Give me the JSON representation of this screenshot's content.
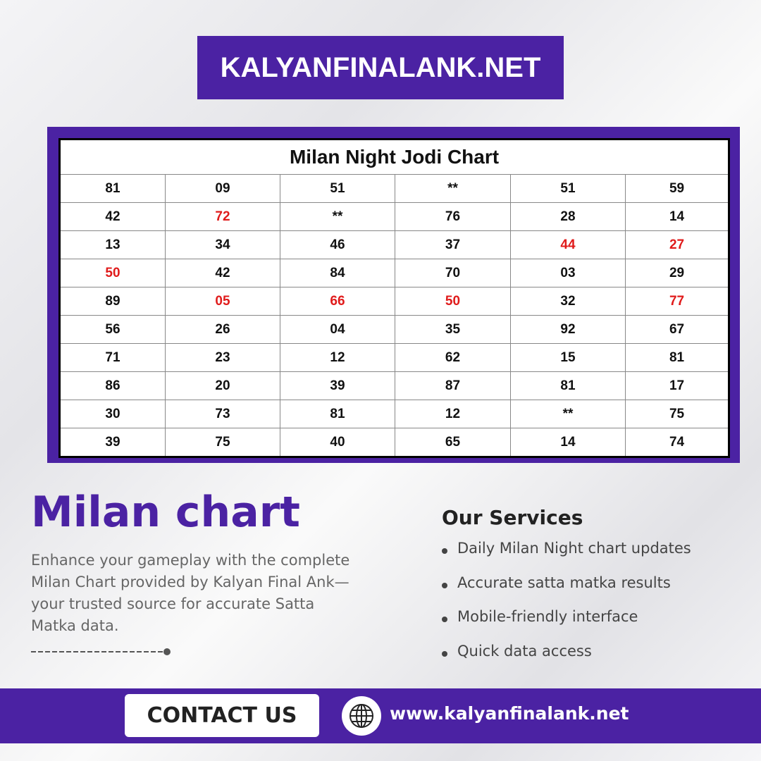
{
  "header": {
    "title": "KALYANFINALANK.NET"
  },
  "table": {
    "title": "Milan Night Jodi Chart",
    "rows": [
      [
        "81",
        "09",
        "51",
        "**",
        "51",
        "59"
      ],
      [
        "42",
        {
          "text": "72",
          "color": "#e01b1b"
        },
        "**",
        "76",
        "28",
        "14"
      ],
      [
        "13",
        "34",
        "46",
        "37",
        {
          "text": "44",
          "color": "#e01b1b"
        },
        {
          "text": "27",
          "color": "#e01b1b"
        }
      ],
      [
        {
          "text": "50",
          "color": "#e01b1b"
        },
        "42",
        "84",
        "70",
        "03",
        "29"
      ],
      [
        "89",
        {
          "text": "05",
          "color": "#e01b1b"
        },
        {
          "text": "66",
          "color": "#e01b1b"
        },
        {
          "text": "50",
          "color": "#e01b1b"
        },
        "32",
        {
          "text": "77",
          "color": "#e01b1b"
        }
      ],
      [
        "56",
        "26",
        "04",
        "35",
        "92",
        "67"
      ],
      [
        "71",
        "23",
        "12",
        "62",
        "15",
        "81"
      ],
      [
        "86",
        "20",
        "39",
        "87",
        "81",
        "17"
      ],
      [
        "30",
        "73",
        "81",
        "12",
        "**",
        "75"
      ],
      [
        "39",
        "75",
        "40",
        "65",
        "14",
        "74"
      ]
    ]
  },
  "intro": {
    "heading": "Milan chart",
    "text": "Enhance your gameplay with the complete Milan Chart provided by Kalyan Final Ank—your trusted source for accurate Satta Matka data."
  },
  "services": {
    "title": "Our Services",
    "items": [
      "Daily Milan Night chart updates",
      "Accurate satta matka results",
      "Mobile-friendly interface",
      "Quick data access"
    ]
  },
  "footer": {
    "button": "CONTACT US",
    "url": "www.kalyanfinalank.net"
  }
}
